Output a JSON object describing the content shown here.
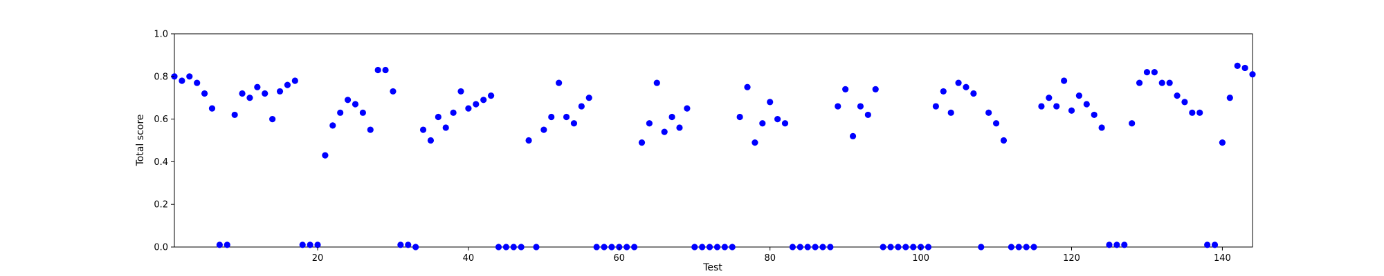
{
  "chart_data": {
    "type": "scatter",
    "xlabel": "Test",
    "ylabel": "Total score",
    "xlim": [
      1,
      144
    ],
    "ylim": [
      0,
      1.0
    ],
    "x_ticks": [
      20,
      40,
      60,
      80,
      100,
      120,
      140
    ],
    "y_ticks": [
      0.0,
      0.2,
      0.4,
      0.6,
      0.8,
      1.0
    ],
    "x_tick_labels": [
      "20",
      "40",
      "60",
      "80",
      "100",
      "120",
      "140"
    ],
    "y_tick_labels": [
      "0.0",
      "0.2",
      "0.4",
      "0.6",
      "0.8",
      "1.0"
    ],
    "grid": false,
    "marker_color": "#0000ff",
    "series": [
      {
        "x": [
          1,
          2,
          3,
          4,
          5,
          6,
          7,
          8,
          9,
          10,
          11,
          12,
          13,
          14,
          15,
          16,
          17,
          18,
          19,
          20,
          21,
          22,
          23,
          24,
          25,
          26,
          27,
          28,
          29,
          30,
          31,
          32,
          33,
          34,
          35,
          36,
          37,
          38,
          39,
          40,
          41,
          42,
          43,
          44,
          45,
          46,
          47,
          48,
          49,
          50,
          51,
          52,
          53,
          54,
          55,
          56,
          57,
          58,
          59,
          60,
          61,
          62,
          63,
          64,
          65,
          66,
          67,
          68,
          69,
          70,
          71,
          72,
          73,
          74,
          75,
          76,
          77,
          78,
          79,
          80,
          81,
          82,
          83,
          84,
          85,
          86,
          87,
          88,
          89,
          90,
          91,
          92,
          93,
          94,
          95,
          96,
          97,
          98,
          99,
          100,
          101,
          102,
          103,
          104,
          105,
          106,
          107,
          108,
          109,
          110,
          111,
          112,
          113,
          114,
          115,
          116,
          117,
          118,
          119,
          120,
          121,
          122,
          123,
          124,
          125,
          126,
          127,
          128,
          129,
          130,
          131,
          132,
          133,
          134,
          135,
          136,
          137,
          138,
          139,
          140,
          141,
          142,
          143,
          144
        ],
        "y": [
          0.8,
          0.78,
          0.8,
          0.77,
          0.72,
          0.65,
          0.01,
          0.01,
          0.62,
          0.72,
          0.7,
          0.75,
          0.72,
          0.6,
          0.73,
          0.76,
          0.78,
          0.01,
          0.01,
          0.01,
          0.43,
          0.57,
          0.63,
          0.69,
          0.67,
          0.63,
          0.55,
          0.83,
          0.83,
          0.73,
          0.01,
          0.01,
          0.0,
          0.55,
          0.5,
          0.61,
          0.56,
          0.63,
          0.73,
          0.65,
          0.67,
          0.69,
          0.71,
          0.0,
          0.0,
          0.0,
          0.0,
          0.5,
          0.0,
          0.55,
          0.61,
          0.77,
          0.61,
          0.58,
          0.66,
          0.7,
          0.0,
          0.0,
          0.0,
          0.0,
          0.0,
          0.0,
          0.49,
          0.58,
          0.77,
          0.54,
          0.61,
          0.56,
          0.65,
          0.0,
          0.0,
          0.0,
          0.0,
          0.0,
          0.0,
          0.61,
          0.75,
          0.49,
          0.58,
          0.68,
          0.6,
          0.58,
          0.0,
          0.0,
          0.0,
          0.0,
          0.0,
          0.0,
          0.66,
          0.74,
          0.52,
          0.66,
          0.62,
          0.74,
          0.0,
          0.0,
          0.0,
          0.0,
          0.0,
          0.0,
          0.0,
          0.66,
          0.73,
          0.63,
          0.77,
          0.75,
          0.72,
          0.0,
          0.63,
          0.58,
          0.5,
          0.0,
          0.0,
          0.0,
          0.0,
          0.66,
          0.7,
          0.66,
          0.78,
          0.64,
          0.71,
          0.67,
          0.62,
          0.56,
          0.01,
          0.01,
          0.01,
          0.58,
          0.77,
          0.82,
          0.82,
          0.77,
          0.77,
          0.71,
          0.68,
          0.63,
          0.63,
          0.01,
          0.01,
          0.49,
          0.7,
          0.85,
          0.84,
          0.81
        ]
      }
    ]
  }
}
